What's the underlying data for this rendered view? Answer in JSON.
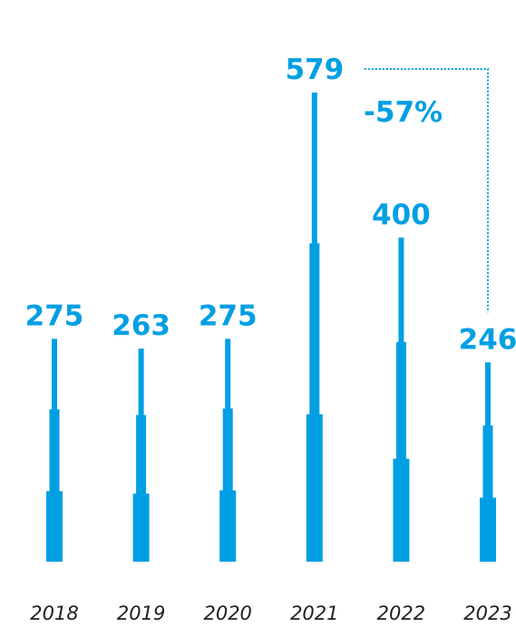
{
  "chart_data": {
    "type": "bar",
    "categories": [
      "2018",
      "2019",
      "2020",
      "2021",
      "2022",
      "2023"
    ],
    "values": [
      275,
      263,
      275,
      579,
      400,
      246
    ],
    "value_labels": [
      "275",
      "263",
      "275",
      "579",
      "400",
      "246"
    ],
    "segments": [
      [
        87,
        188,
        275
      ],
      [
        84,
        181,
        263
      ],
      [
        88,
        189,
        275
      ],
      [
        182,
        393,
        579
      ],
      [
        127,
        271,
        400
      ],
      [
        79,
        168,
        246
      ]
    ],
    "ylim": [
      0,
      579
    ],
    "annotation": {
      "text": "-57%",
      "from": "2021",
      "to": "2023"
    },
    "title": "",
    "xlabel": "",
    "ylabel": "",
    "grid": false,
    "legend": "none"
  },
  "colors": {
    "bar": "#009FE3",
    "label": "#009FE3",
    "axis_text": "#222222"
  }
}
